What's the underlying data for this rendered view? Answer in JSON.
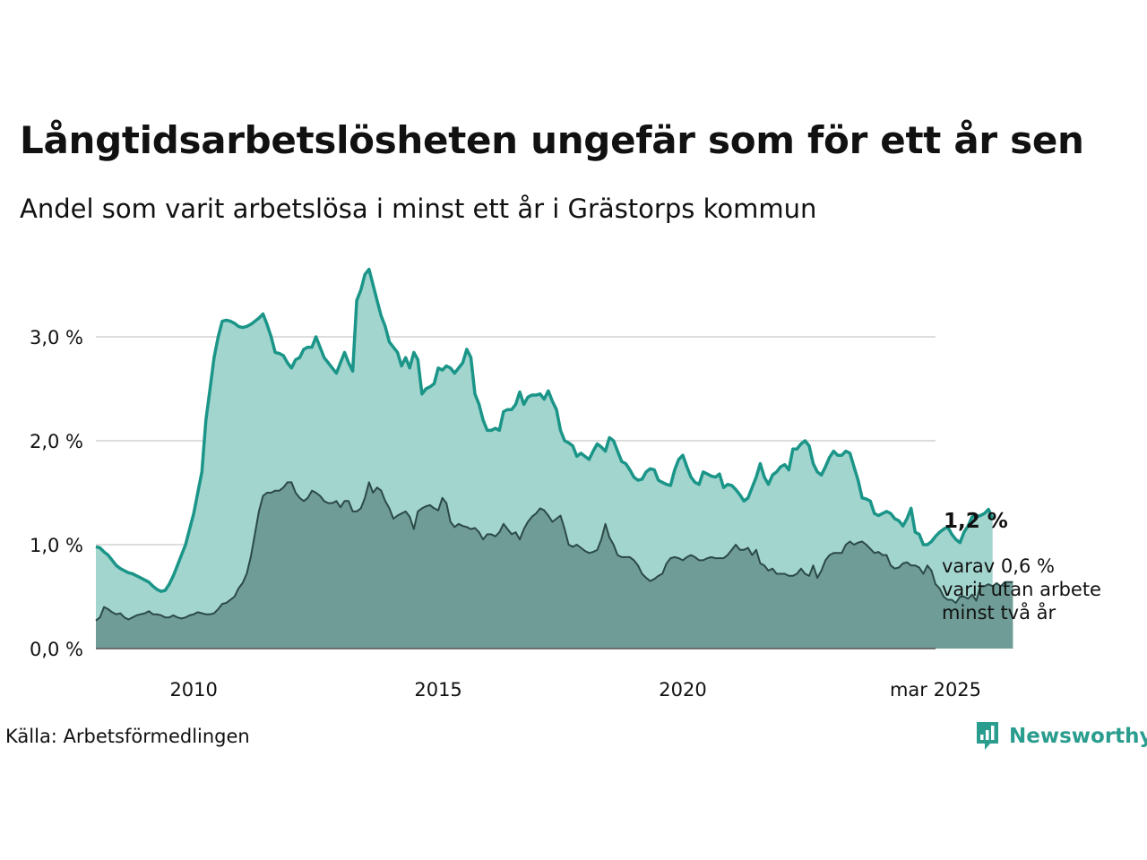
{
  "chart": {
    "title": "Långtidsarbetslösheten ungefär som för ett år sen",
    "subtitle": "Andel som varit arbetslösa i minst ett år i Grästorps kommun",
    "source": "Källa: Arbetsförmedlingen",
    "brand": "Newsworthy",
    "end_label_total": "1,2 %",
    "end_label_sub": [
      "varav 0,6 %",
      "varit utan arbete",
      "minst två år"
    ]
  },
  "colors": {
    "line_total": "#1a9588",
    "area_total": "#a3d5cf",
    "line_sub": "#2c4a47",
    "area_sub": "#6f9c96",
    "grid": "#dddddd",
    "brand": "#2a9d8f"
  },
  "chart_data": {
    "type": "area",
    "x_start": "2008-01",
    "x_end": "2025-03",
    "frequency": "monthly",
    "xticks": [
      {
        "x": "2010-01",
        "label": "2010"
      },
      {
        "x": "2015-01",
        "label": "2015"
      },
      {
        "x": "2020-01",
        "label": "2020"
      },
      {
        "x": "2025-03",
        "label": "mar 2025"
      }
    ],
    "yticks": [
      {
        "y": 0,
        "label": "0,0 %"
      },
      {
        "y": 1,
        "label": "1,0 %"
      },
      {
        "y": 2,
        "label": "2,0 %"
      },
      {
        "y": 3,
        "label": "3,0 %"
      }
    ],
    "ylim": [
      0,
      3.8
    ],
    "grid": true,
    "series": [
      {
        "key": "total",
        "values": [
          0.98,
          0.97,
          0.93,
          0.9,
          0.85,
          0.8,
          0.77,
          0.75,
          0.73,
          0.72,
          0.7,
          0.68,
          0.66,
          0.64,
          0.6,
          0.57,
          0.55,
          0.56,
          0.62,
          0.7,
          0.8,
          0.9,
          1.0,
          1.15,
          1.3,
          1.5,
          1.7,
          2.2,
          2.5,
          2.8,
          3.0,
          3.15,
          3.16,
          3.15,
          3.13,
          3.1,
          3.09,
          3.1,
          3.12,
          3.15,
          3.18,
          3.22,
          3.12,
          3.0,
          2.85,
          2.84,
          2.82,
          2.75,
          2.7,
          2.78,
          2.8,
          2.88,
          2.9,
          2.9,
          3.0,
          2.9,
          2.8,
          2.75,
          2.7,
          2.65,
          2.75,
          2.85,
          2.75,
          2.67,
          3.35,
          3.45,
          3.6,
          3.65,
          3.5,
          3.35,
          3.2,
          3.1,
          2.95,
          2.9,
          2.85,
          2.72,
          2.8,
          2.7,
          2.85,
          2.78,
          2.45,
          2.5,
          2.52,
          2.55,
          2.7,
          2.68,
          2.72,
          2.7,
          2.65,
          2.7,
          2.75,
          2.88,
          2.8,
          2.45,
          2.35,
          2.2,
          2.1,
          2.1,
          2.12,
          2.1,
          2.28,
          2.3,
          2.3,
          2.35,
          2.47,
          2.35,
          2.42,
          2.44,
          2.44,
          2.45,
          2.4,
          2.48,
          2.38,
          2.3,
          2.1,
          2.0,
          1.98,
          1.95,
          1.85,
          1.88,
          1.85,
          1.82,
          1.9,
          1.97,
          1.94,
          1.9,
          2.03,
          2.0,
          1.9,
          1.8,
          1.78,
          1.72,
          1.65,
          1.62,
          1.63,
          1.7,
          1.73,
          1.72,
          1.62,
          1.6,
          1.58,
          1.57,
          1.72,
          1.82,
          1.86,
          1.75,
          1.65,
          1.6,
          1.58,
          1.7,
          1.68,
          1.66,
          1.65,
          1.68,
          1.55,
          1.58,
          1.57,
          1.53,
          1.48,
          1.42,
          1.45,
          1.55,
          1.65,
          1.78,
          1.65,
          1.58,
          1.67,
          1.7,
          1.75,
          1.77,
          1.72,
          1.92,
          1.92,
          1.97,
          2.0,
          1.95,
          1.78,
          1.7,
          1.67,
          1.75,
          1.84,
          1.9,
          1.86,
          1.86,
          1.9,
          1.88,
          1.75,
          1.62,
          1.45,
          1.44,
          1.42,
          1.3,
          1.28,
          1.3,
          1.32,
          1.3,
          1.25,
          1.23,
          1.18,
          1.25,
          1.35,
          1.12,
          1.1,
          1.0,
          1.0,
          1.03,
          1.08,
          1.12,
          1.15,
          1.17,
          1.1,
          1.05,
          1.02,
          1.12,
          1.18,
          1.27,
          1.27,
          1.28,
          1.3,
          1.34,
          1.25
        ]
      },
      {
        "key": "sub",
        "values": [
          0.27,
          0.3,
          0.4,
          0.38,
          0.35,
          0.33,
          0.34,
          0.3,
          0.28,
          0.3,
          0.32,
          0.33,
          0.34,
          0.36,
          0.33,
          0.33,
          0.32,
          0.3,
          0.3,
          0.32,
          0.3,
          0.29,
          0.3,
          0.32,
          0.33,
          0.35,
          0.34,
          0.33,
          0.33,
          0.34,
          0.38,
          0.43,
          0.44,
          0.47,
          0.5,
          0.58,
          0.63,
          0.72,
          0.88,
          1.1,
          1.32,
          1.47,
          1.5,
          1.5,
          1.52,
          1.52,
          1.55,
          1.6,
          1.6,
          1.5,
          1.45,
          1.42,
          1.45,
          1.52,
          1.5,
          1.47,
          1.42,
          1.4,
          1.4,
          1.42,
          1.36,
          1.42,
          1.42,
          1.32,
          1.32,
          1.35,
          1.45,
          1.6,
          1.5,
          1.55,
          1.52,
          1.42,
          1.35,
          1.25,
          1.28,
          1.3,
          1.32,
          1.27,
          1.15,
          1.32,
          1.35,
          1.37,
          1.38,
          1.35,
          1.33,
          1.45,
          1.4,
          1.22,
          1.17,
          1.2,
          1.18,
          1.17,
          1.15,
          1.16,
          1.12,
          1.05,
          1.1,
          1.1,
          1.08,
          1.12,
          1.2,
          1.15,
          1.1,
          1.12,
          1.05,
          1.15,
          1.22,
          1.27,
          1.3,
          1.35,
          1.33,
          1.28,
          1.22,
          1.25,
          1.28,
          1.15,
          1.0,
          0.98,
          1.0,
          0.97,
          0.94,
          0.92,
          0.93,
          0.95,
          1.05,
          1.2,
          1.07,
          1.0,
          0.9,
          0.88,
          0.88,
          0.88,
          0.85,
          0.8,
          0.72,
          0.68,
          0.65,
          0.67,
          0.7,
          0.72,
          0.82,
          0.87,
          0.88,
          0.87,
          0.85,
          0.88,
          0.9,
          0.88,
          0.85,
          0.85,
          0.87,
          0.88,
          0.87,
          0.87,
          0.87,
          0.9,
          0.95,
          1.0,
          0.95,
          0.95,
          0.97,
          0.9,
          0.95,
          0.82,
          0.8,
          0.75,
          0.77,
          0.72,
          0.72,
          0.72,
          0.7,
          0.7,
          0.72,
          0.77,
          0.72,
          0.7,
          0.8,
          0.68,
          0.75,
          0.85,
          0.9,
          0.92,
          0.92,
          0.92,
          1.0,
          1.03,
          1.0,
          1.02,
          1.03,
          1.0,
          0.96,
          0.92,
          0.93,
          0.9,
          0.9,
          0.8,
          0.77,
          0.78,
          0.82,
          0.83,
          0.8,
          0.8,
          0.78,
          0.72,
          0.8,
          0.75,
          0.62,
          0.58,
          0.5,
          0.47,
          0.47,
          0.44,
          0.5,
          0.5,
          0.48,
          0.52,
          0.46,
          0.6,
          0.6,
          0.62,
          0.6,
          0.63,
          0.6,
          0.64,
          0.64,
          0.64
        ]
      }
    ]
  }
}
